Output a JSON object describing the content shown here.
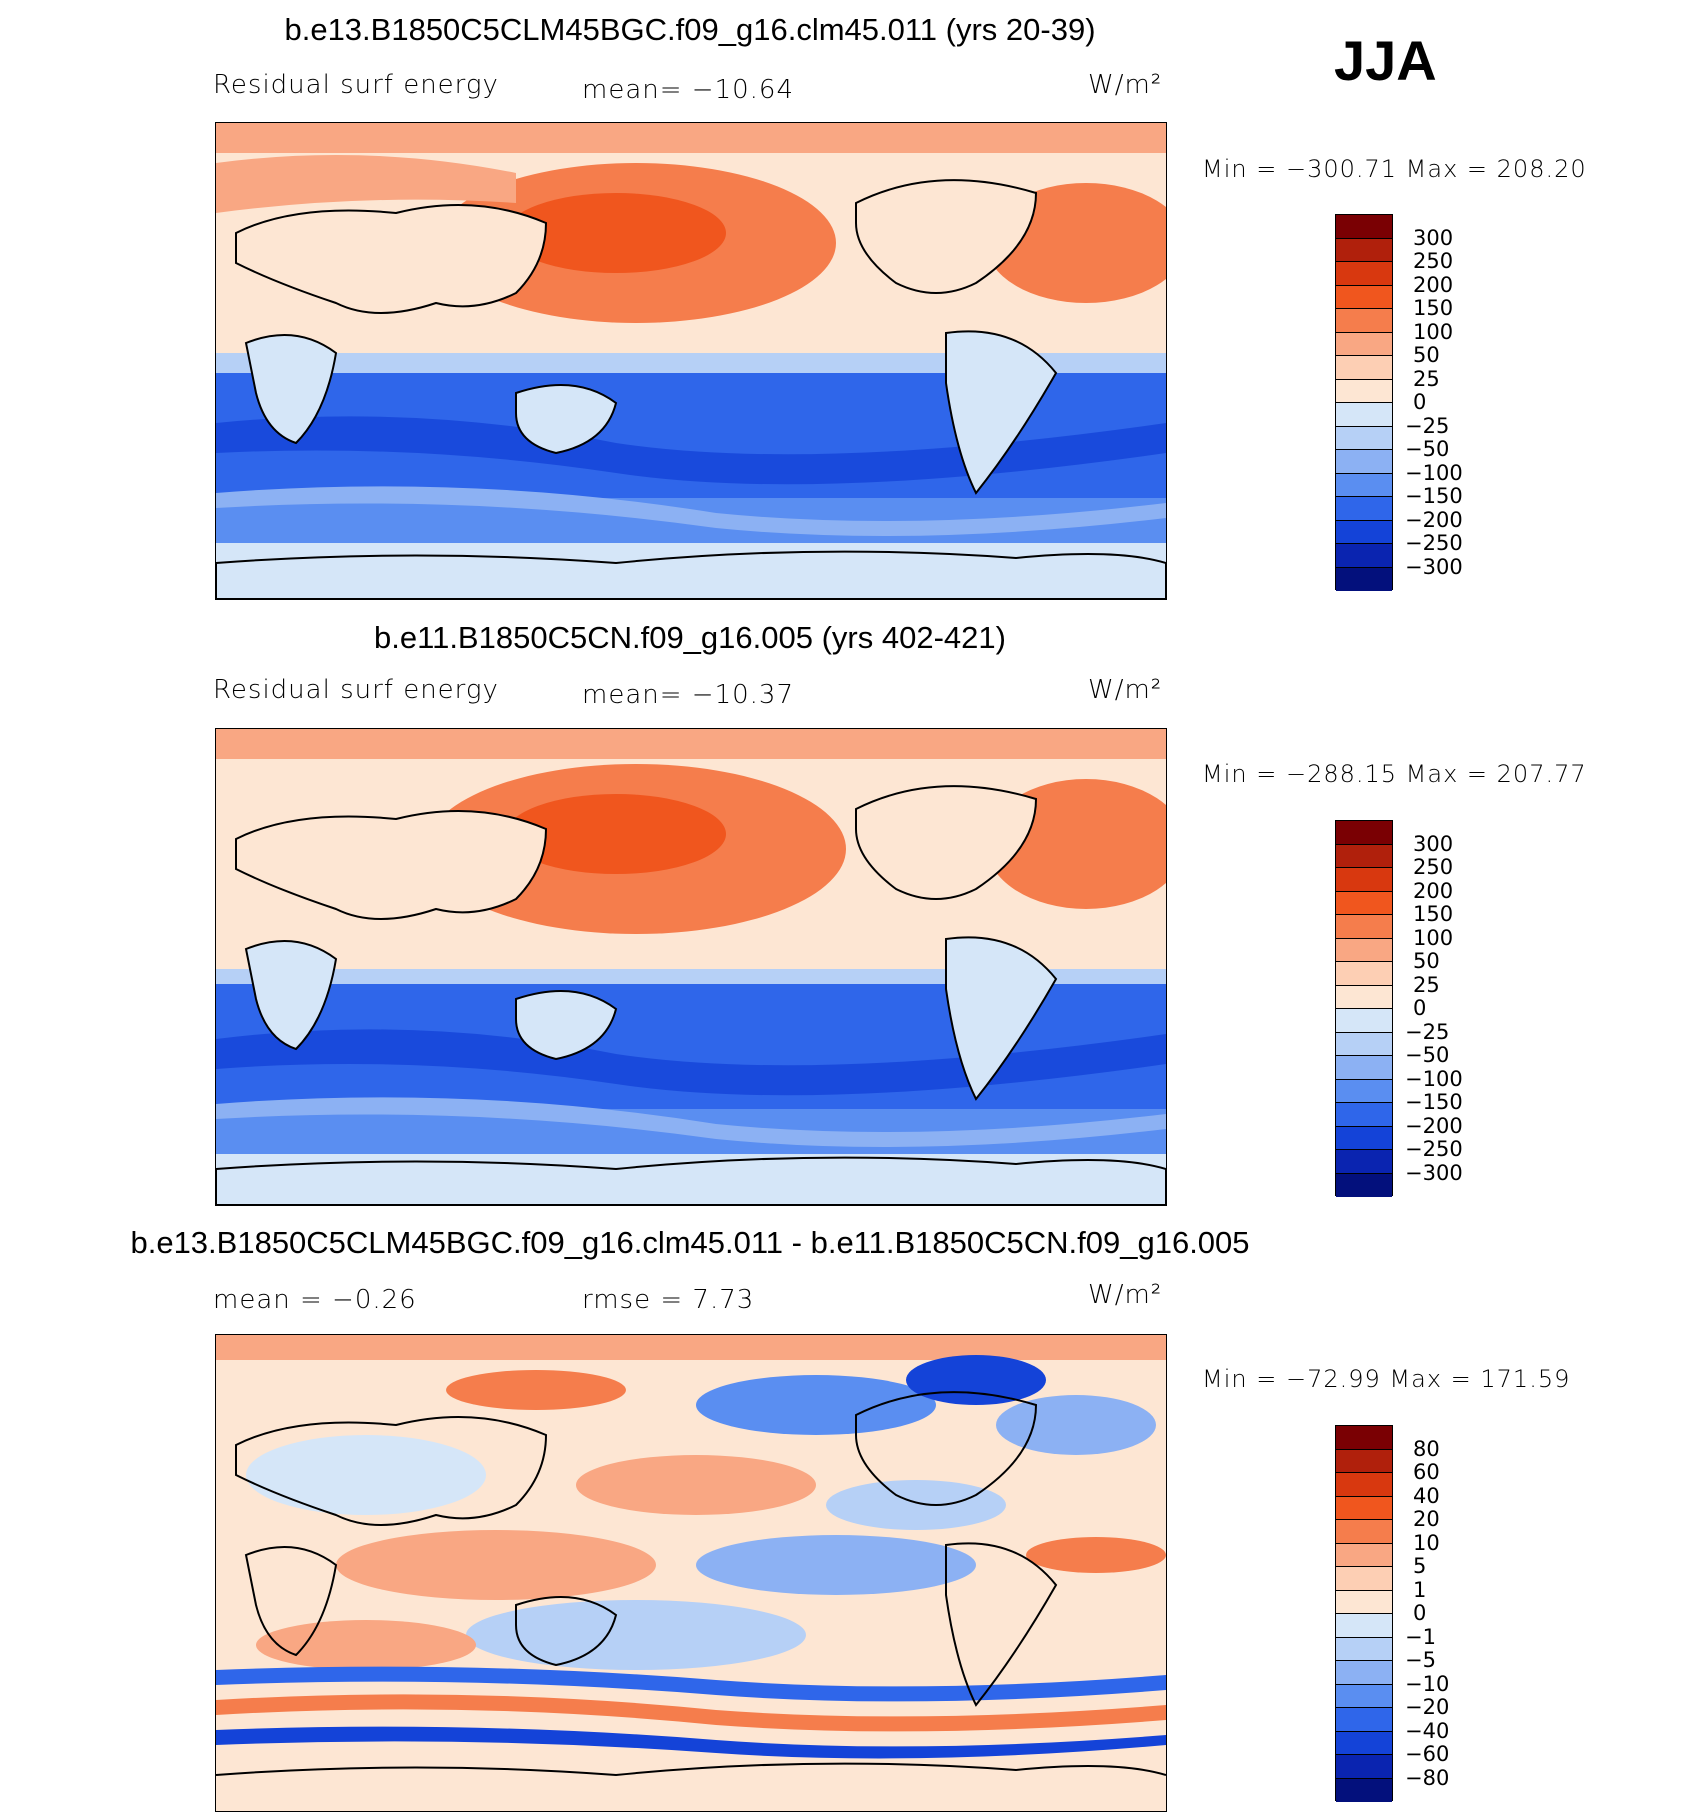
{
  "season": "JJA",
  "panels": [
    {
      "title": "b.e13.B1850C5CLM45BGC.f09_g16.clm45.011 (yrs 20-39)",
      "variable": "Residual surf energy",
      "mean_text": "mean=  −10.64",
      "units": "W/m²",
      "minmax": "Min  =  −300.71  Max  =  208.20",
      "levels": [
        "300",
        "250",
        "200",
        "150",
        "100",
        "50",
        "25",
        "0",
        "−25",
        "−50",
        "−100",
        "−150",
        "−200",
        "−250",
        "−300"
      ],
      "colors": [
        "#7a0003",
        "#b0200c",
        "#d8380f",
        "#f0561e",
        "#f57d4c",
        "#f9a783",
        "#fdcfb4",
        "#fde6d3",
        "#d5e6f8",
        "#b6d0f6",
        "#8cb1f3",
        "#5a8ef1",
        "#2f66ea",
        "#1443d8",
        "#0a24b0",
        "#03107c"
      ]
    },
    {
      "title": "b.e11.B1850C5CN.f09_g16.005 (yrs 402-421)",
      "variable": "Residual surf energy",
      "mean_text": "mean=  −10.37",
      "units": "W/m²",
      "minmax": "Min  =  −288.15  Max  =  207.77",
      "levels": [
        "300",
        "250",
        "200",
        "150",
        "100",
        "50",
        "25",
        "0",
        "−25",
        "−50",
        "−100",
        "−150",
        "−200",
        "−250",
        "−300"
      ],
      "colors": [
        "#7a0003",
        "#b0200c",
        "#d8380f",
        "#f0561e",
        "#f57d4c",
        "#f9a783",
        "#fdcfb4",
        "#fde6d3",
        "#d5e6f8",
        "#b6d0f6",
        "#8cb1f3",
        "#5a8ef1",
        "#2f66ea",
        "#1443d8",
        "#0a24b0",
        "#03107c"
      ]
    },
    {
      "title": "b.e13.B1850C5CLM45BGC.f09_g16.clm45.011 - b.e11.B1850C5CN.f09_g16.005",
      "mean_text": "mean  =    −0.26",
      "rmse_text": "rmse  =     7.73",
      "units": "W/m²",
      "minmax": "Min  =  −72.99  Max  =  171.59",
      "levels": [
        "80",
        "60",
        "40",
        "20",
        "10",
        "5",
        "1",
        "0",
        "−1",
        "−5",
        "−10",
        "−20",
        "−40",
        "−60",
        "−80"
      ],
      "colors": [
        "#7a0003",
        "#b0200c",
        "#d8380f",
        "#f0561e",
        "#f57d4c",
        "#f9a783",
        "#fdcfb4",
        "#fde6d3",
        "#d5e6f8",
        "#b6d0f6",
        "#8cb1f3",
        "#5a8ef1",
        "#2f66ea",
        "#1443d8",
        "#0a24b0",
        "#03107c"
      ]
    }
  ]
}
